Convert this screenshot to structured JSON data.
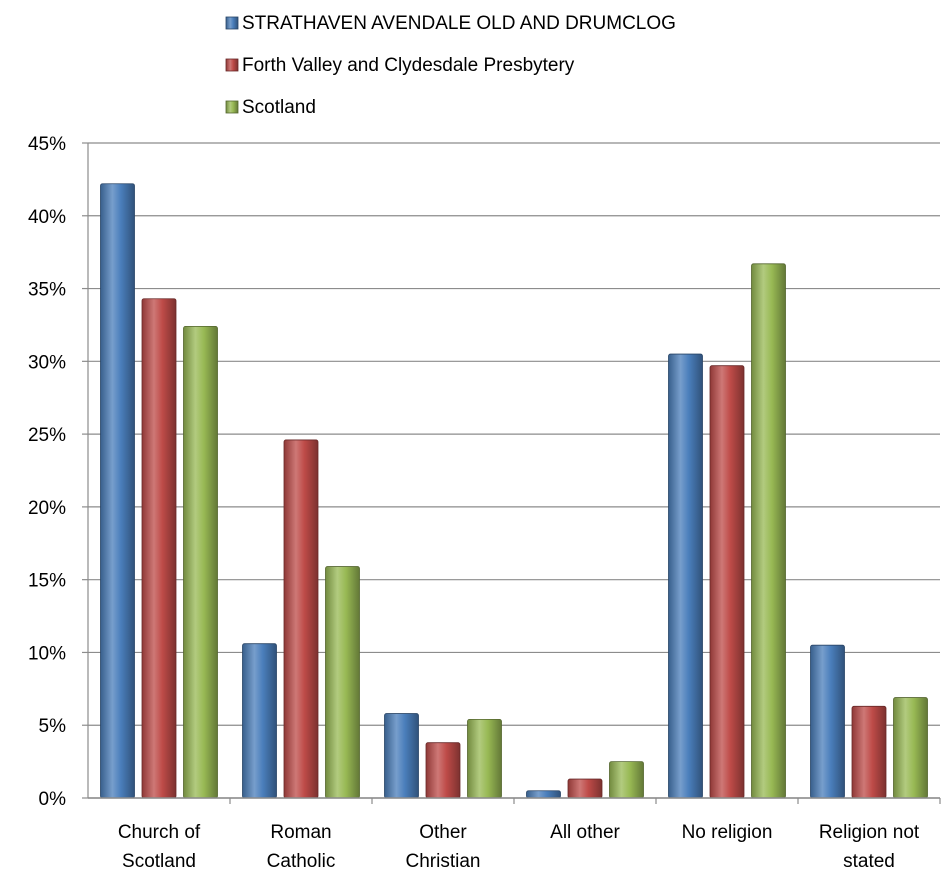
{
  "chart_data": {
    "type": "bar",
    "categories": [
      [
        "Church of",
        "Scotland"
      ],
      [
        "Roman",
        "Catholic"
      ],
      [
        "Other",
        "Christian"
      ],
      [
        "All other"
      ],
      [
        "No religion"
      ],
      [
        "Religion not",
        "stated"
      ]
    ],
    "series": [
      {
        "name": "STRATHAVEN AVENDALE OLD AND DRUMCLOG",
        "color": "#4a7ebb",
        "values": [
          42.2,
          10.6,
          5.8,
          0.5,
          30.5,
          10.5
        ]
      },
      {
        "name": "Forth Valley and Clydesdale Presbytery",
        "color": "#be4b48",
        "values": [
          34.3,
          24.6,
          3.8,
          1.3,
          29.7,
          6.3
        ]
      },
      {
        "name": "Scotland",
        "color": "#98b954",
        "values": [
          32.4,
          15.9,
          5.4,
          2.5,
          36.7,
          6.9
        ]
      }
    ],
    "ylim": [
      0,
      45
    ],
    "y_ticks": [
      "0%",
      "5%",
      "10%",
      "15%",
      "20%",
      "25%",
      "30%",
      "35%",
      "40%",
      "45%"
    ],
    "y_tick_values": [
      0,
      5,
      10,
      15,
      20,
      25,
      30,
      35,
      40,
      45
    ],
    "grid": true,
    "legend_position": "top-center",
    "title": "",
    "xlabel": "",
    "ylabel": ""
  }
}
